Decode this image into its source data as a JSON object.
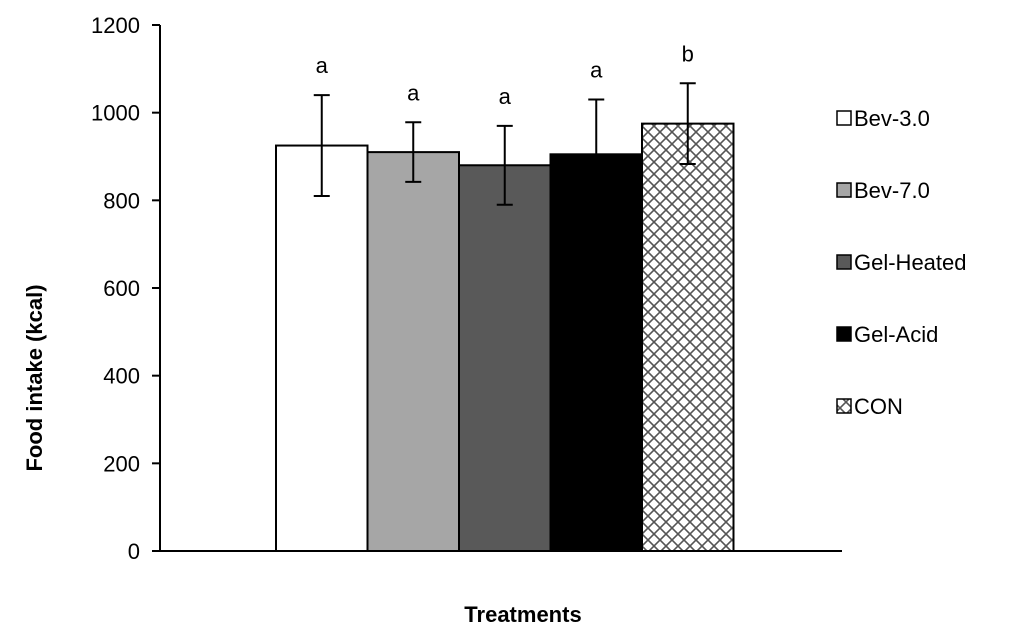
{
  "chart_data": {
    "type": "bar",
    "xlabel": "Treatments",
    "ylabel": "Food intake (kcal)",
    "ylim": [
      0,
      1200
    ],
    "yticks": [
      0,
      200,
      400,
      600,
      800,
      1000,
      1200
    ],
    "grid": false,
    "legend_position": "right",
    "series": [
      {
        "name": "Bev-3.0",
        "value": 925,
        "error": 115,
        "label": "a",
        "fill": "#ffffff",
        "pattern": "solid"
      },
      {
        "name": "Bev-7.0",
        "value": 910,
        "error": 68,
        "label": "a",
        "fill": "#a6a6a6",
        "pattern": "solid"
      },
      {
        "name": "Gel-Heated",
        "value": 880,
        "error": 90,
        "label": "a",
        "fill": "#595959",
        "pattern": "solid"
      },
      {
        "name": "Gel-Acid",
        "value": 905,
        "error": 125,
        "label": "a",
        "fill": "#000000",
        "pattern": "solid"
      },
      {
        "name": "CON",
        "value": 975,
        "error": 92,
        "label": "b",
        "fill": "#ffffff",
        "pattern": "diamond-lattice"
      }
    ]
  }
}
